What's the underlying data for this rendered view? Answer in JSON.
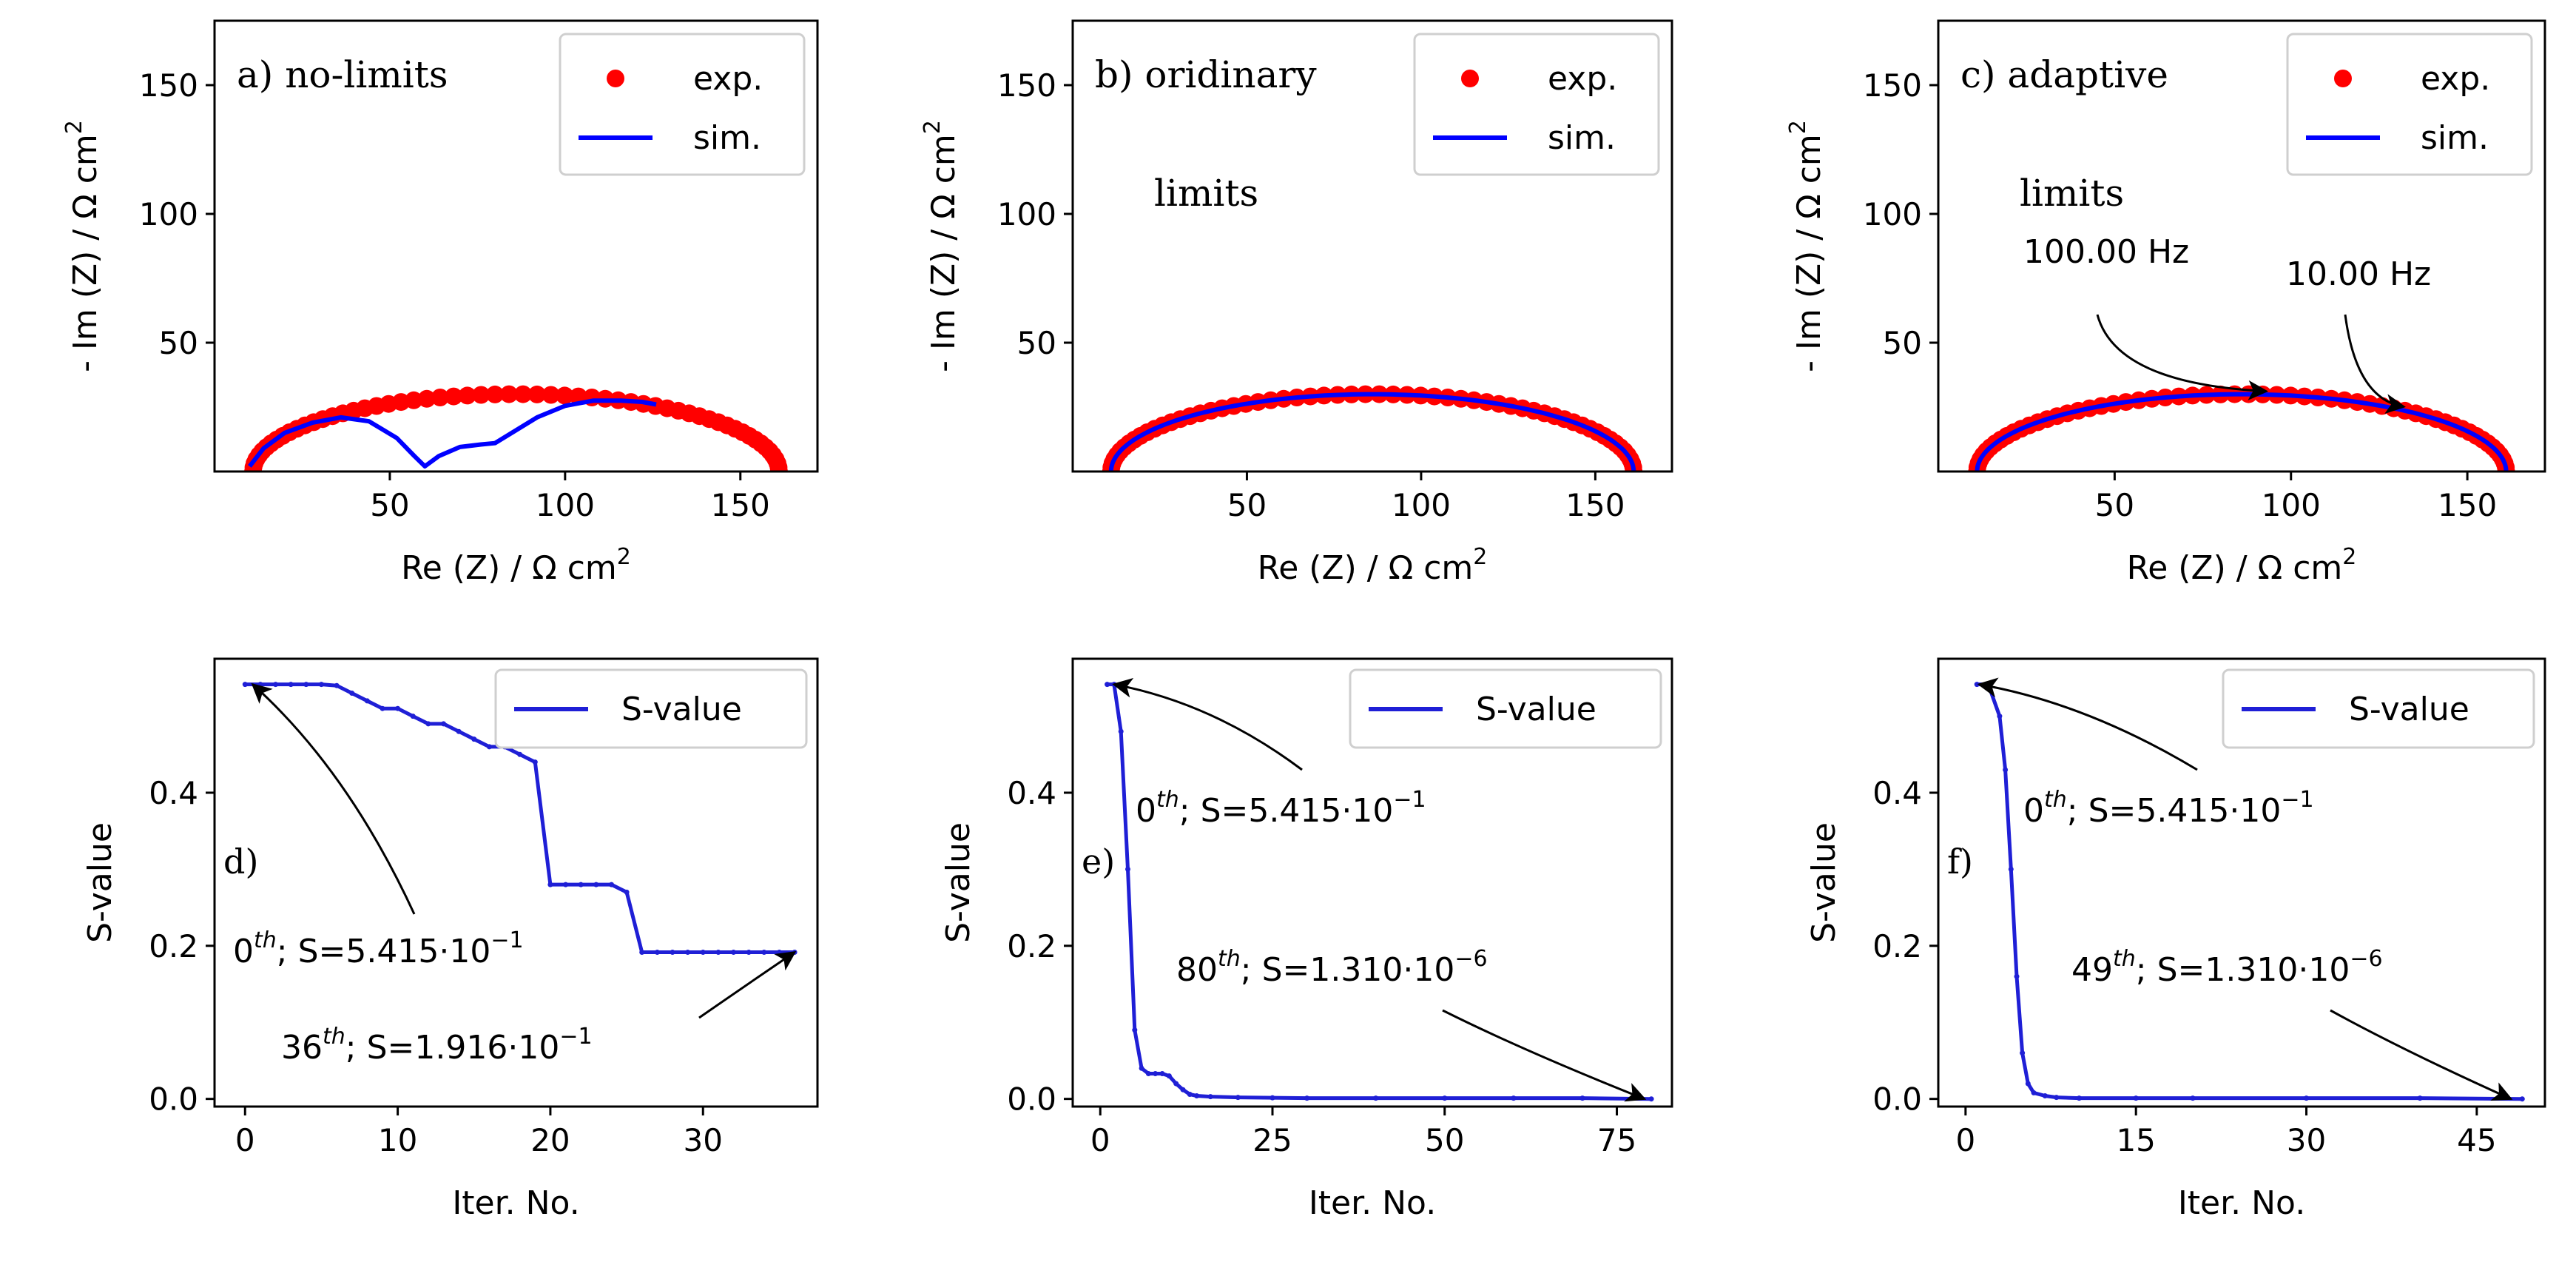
{
  "colors": {
    "exp": "#ff0000",
    "sim": "#0000ff",
    "svalue": "#1f1fd6",
    "axis": "#000000"
  },
  "chart_data": [
    {
      "type": "scatter",
      "panel_label": "a) no-limits",
      "title_lines": [
        "a) no-limits"
      ],
      "xlabel": "Re (Z) / Ω cm",
      "ylabel": "- Im (Z) / Ω cm",
      "unit_exponent": "2",
      "xlim": [
        0,
        172
      ],
      "ylim": [
        0,
        175
      ],
      "xticks": [
        50,
        100,
        150
      ],
      "yticks": [
        50,
        100,
        150
      ],
      "legend": {
        "position": "top-right",
        "entries": [
          "exp.",
          "sim."
        ]
      },
      "series": [
        {
          "name": "exp.",
          "kind": "semicircle",
          "center": 86,
          "radius": 75,
          "height": 30,
          "n_points": 60
        },
        {
          "name": "sim.",
          "kind": "line",
          "x": [
            10,
            14,
            20,
            28,
            36,
            44,
            52,
            57,
            60,
            64,
            70,
            76,
            80,
            86,
            92,
            100,
            108,
            116,
            122,
            126
          ],
          "y": [
            2,
            9,
            15,
            19,
            21,
            19.5,
            13,
            6,
            2,
            6,
            9.5,
            10.5,
            11,
            16,
            21,
            25.5,
            27.5,
            27.5,
            27,
            26
          ]
        }
      ],
      "annotations": []
    },
    {
      "type": "scatter",
      "panel_label": "b) oridinary limits",
      "title_lines": [
        "b) oridinary",
        "limits"
      ],
      "xlabel": "Re (Z) / Ω cm",
      "ylabel": "- Im (Z) / Ω cm",
      "unit_exponent": "2",
      "xlim": [
        0,
        172
      ],
      "ylim": [
        0,
        175
      ],
      "xticks": [
        50,
        100,
        150
      ],
      "yticks": [
        50,
        100,
        150
      ],
      "legend": {
        "position": "top-right",
        "entries": [
          "exp.",
          "sim."
        ]
      },
      "series": [
        {
          "name": "exp.",
          "kind": "semicircle",
          "center": 86,
          "radius": 75,
          "height": 30,
          "n_points": 60
        },
        {
          "name": "sim.",
          "kind": "semicircle_line",
          "center": 86,
          "radius": 75,
          "height": 30
        }
      ],
      "annotations": []
    },
    {
      "type": "scatter",
      "panel_label": "c) adaptive limits",
      "title_lines": [
        "c) adaptive",
        "limits"
      ],
      "xlabel": "Re (Z) / Ω cm",
      "ylabel": "- Im (Z) / Ω cm",
      "unit_exponent": "2",
      "xlim": [
        0,
        172
      ],
      "ylim": [
        0,
        175
      ],
      "xticks": [
        50,
        100,
        150
      ],
      "yticks": [
        50,
        100,
        150
      ],
      "legend": {
        "position": "top-right",
        "entries": [
          "exp.",
          "sim."
        ]
      },
      "series": [
        {
          "name": "exp.",
          "kind": "semicircle",
          "center": 86,
          "radius": 75,
          "height": 30,
          "n_points": 60
        },
        {
          "name": "sim.",
          "kind": "semicircle_line",
          "center": 86,
          "radius": 75,
          "height": 30
        }
      ],
      "annotations": [
        {
          "text": "100.00 Hz",
          "target_x": 93,
          "target_y": 30
        },
        {
          "text": "10.00 Hz",
          "target_x": 132,
          "target_y": 24
        }
      ]
    },
    {
      "type": "line",
      "panel_label": "d)",
      "xlabel": "Iter. No.",
      "ylabel": "S-value",
      "xlim": [
        -2,
        37.5
      ],
      "ylim": [
        -0.01,
        0.575
      ],
      "xticks": [
        0,
        10,
        20,
        30
      ],
      "yticks": [
        0.0,
        0.2,
        0.4
      ],
      "ytick_labels": [
        "0.0",
        "0.2",
        "0.4"
      ],
      "legend": {
        "position": "top-right",
        "entries": [
          "S-value"
        ]
      },
      "series": [
        {
          "name": "S-value",
          "x": [
            0,
            1,
            2,
            3,
            4,
            5,
            6,
            7,
            8,
            9,
            10,
            11,
            12,
            13,
            14,
            15,
            16,
            17,
            18,
            19,
            20,
            21,
            22,
            23,
            24,
            25,
            26,
            27,
            28,
            29,
            30,
            31,
            32,
            33,
            34,
            35,
            36
          ],
          "y": [
            0.5415,
            0.5415,
            0.5415,
            0.5415,
            0.5415,
            0.5415,
            0.54,
            0.53,
            0.52,
            0.51,
            0.51,
            0.5,
            0.49,
            0.49,
            0.48,
            0.47,
            0.46,
            0.46,
            0.45,
            0.44,
            0.28,
            0.28,
            0.28,
            0.28,
            0.28,
            0.27,
            0.1916,
            0.1916,
            0.1916,
            0.1916,
            0.1916,
            0.1916,
            0.1916,
            0.1916,
            0.1916,
            0.1916,
            0.1916
          ]
        }
      ],
      "annotations": [
        {
          "kind": "superscript",
          "num": "0",
          "sup": "th",
          "s": "; S=5.415·10",
          "exp": "−1",
          "target_x": 0.5,
          "target_y": 0.5415
        },
        {
          "kind": "superscript",
          "num": "36",
          "sup": "th",
          "s": "; S=1.916·10",
          "exp": "−1",
          "target_x": 36,
          "target_y": 0.1916
        }
      ]
    },
    {
      "type": "line",
      "panel_label": "e)",
      "xlabel": "Iter. No.",
      "ylabel": "S-value",
      "xlim": [
        -4,
        83
      ],
      "ylim": [
        -0.01,
        0.575
      ],
      "xticks": [
        0,
        25,
        50,
        75
      ],
      "yticks": [
        0.0,
        0.2,
        0.4
      ],
      "ytick_labels": [
        "0.0",
        "0.2",
        "0.4"
      ],
      "legend": {
        "position": "top-right",
        "entries": [
          "S-value"
        ]
      },
      "series": [
        {
          "name": "S-value",
          "x": [
            1,
            2,
            3,
            4,
            5,
            6,
            7,
            8,
            9,
            10,
            11,
            12,
            13,
            14,
            16,
            20,
            25,
            30,
            40,
            50,
            60,
            70,
            80
          ],
          "y": [
            0.5415,
            0.5415,
            0.48,
            0.3,
            0.09,
            0.04,
            0.033,
            0.033,
            0.033,
            0.03,
            0.02,
            0.012,
            0.006,
            0.004,
            0.003,
            0.002,
            0.0015,
            0.001,
            0.001,
            0.001,
            0.001,
            0.001,
            1.3e-06
          ]
        }
      ],
      "annotations": [
        {
          "kind": "superscript",
          "num": "0",
          "sup": "th",
          "s": "; S=5.415·10",
          "exp": "−1",
          "target_x": 2,
          "target_y": 0.5415
        },
        {
          "kind": "superscript",
          "num": "80",
          "sup": "th",
          "s": "; S=1.310·10",
          "exp": "−6",
          "target_x": 79,
          "target_y": 0.0
        }
      ]
    },
    {
      "type": "line",
      "panel_label": "f)",
      "xlabel": "Iter. No.",
      "ylabel": "S-value",
      "xlim": [
        -2.4,
        51
      ],
      "ylim": [
        -0.01,
        0.575
      ],
      "xticks": [
        0,
        15,
        30,
        45
      ],
      "yticks": [
        0.0,
        0.2,
        0.4
      ],
      "ytick_labels": [
        "0.0",
        "0.2",
        "0.4"
      ],
      "legend": {
        "position": "top-right",
        "entries": [
          "S-value"
        ]
      },
      "series": [
        {
          "name": "S-value",
          "x": [
            1,
            2,
            3,
            3.5,
            4,
            4.5,
            5,
            5.5,
            6,
            7,
            8,
            10,
            15,
            20,
            30,
            40,
            49
          ],
          "y": [
            0.5415,
            0.5415,
            0.5,
            0.43,
            0.3,
            0.16,
            0.06,
            0.02,
            0.008,
            0.004,
            0.002,
            0.001,
            0.001,
            0.001,
            0.001,
            0.001,
            1.3e-06
          ]
        }
      ],
      "annotations": [
        {
          "kind": "superscript",
          "num": "0",
          "sup": "th",
          "s": "; S=5.415·10",
          "exp": "−1",
          "target_x": 1.2,
          "target_y": 0.5415
        },
        {
          "kind": "superscript",
          "num": "49",
          "sup": "th",
          "s": "; S=1.310·10",
          "exp": "−6",
          "target_x": 48,
          "target_y": 0.0
        }
      ]
    }
  ]
}
